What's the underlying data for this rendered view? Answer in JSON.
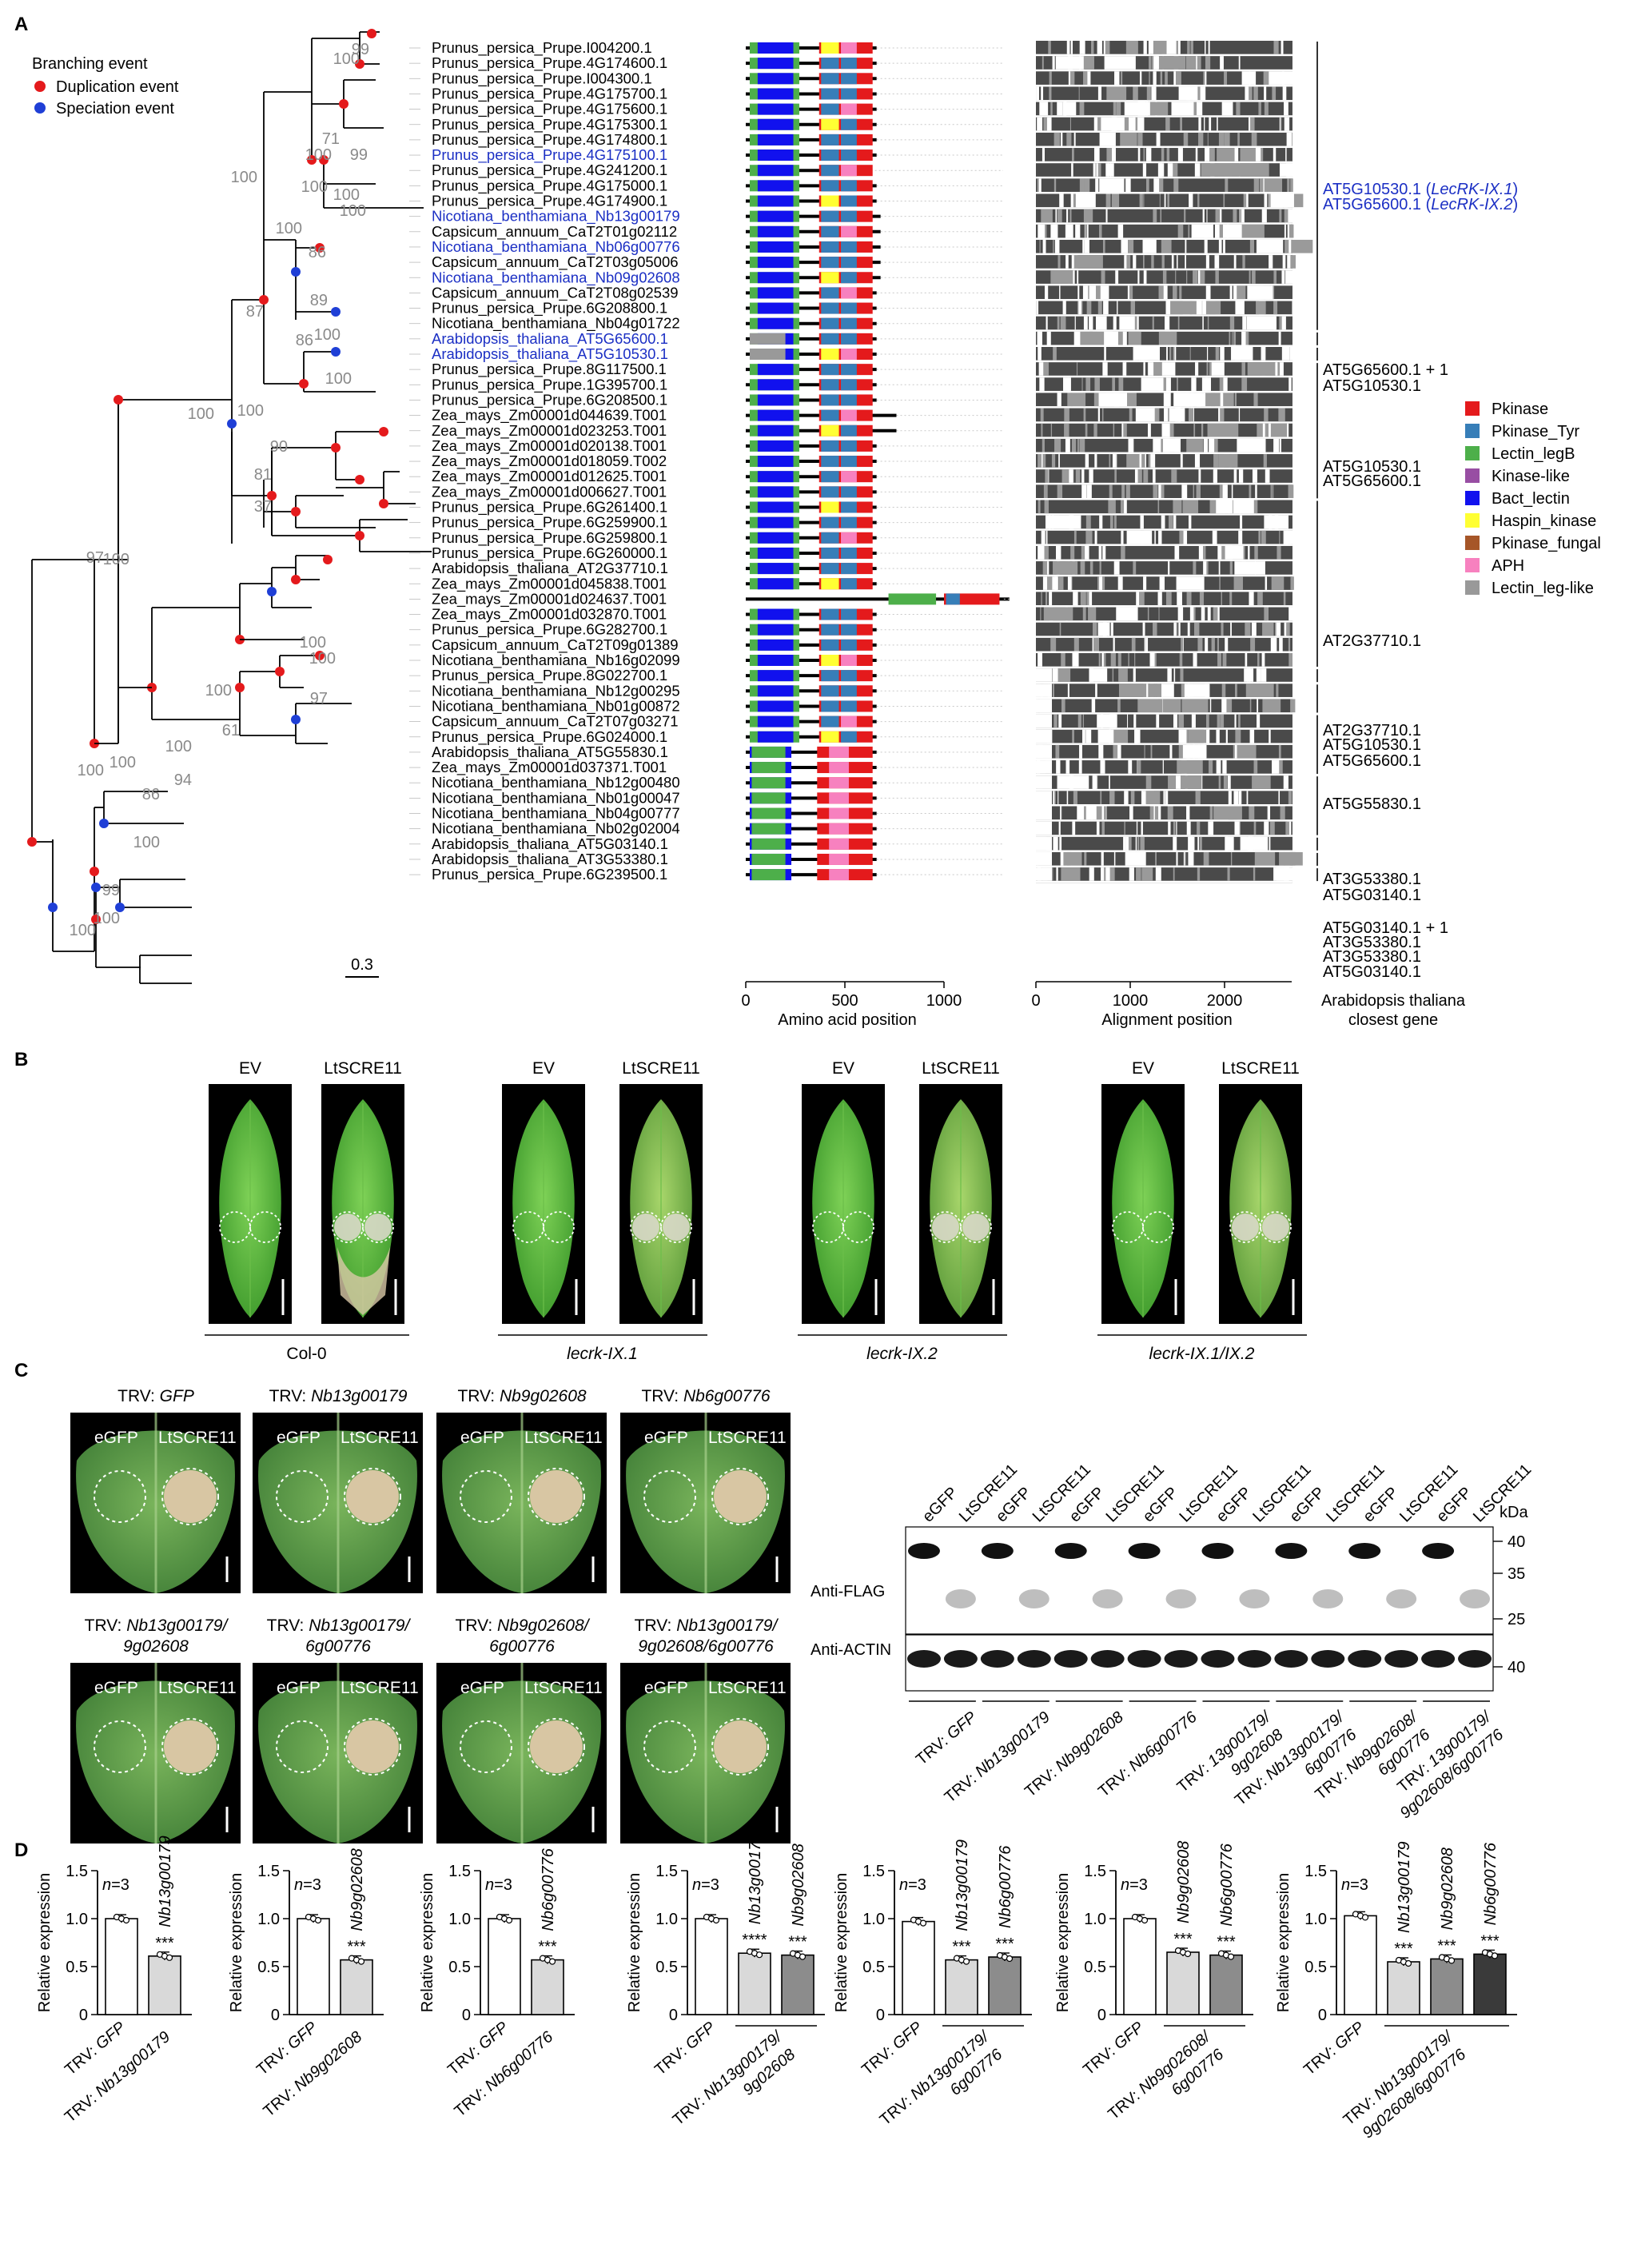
{
  "panel_labels": [
    "A",
    "B",
    "C",
    "D"
  ],
  "panelA": {
    "legend_title": "Branching event",
    "legend_items": [
      {
        "label": "Duplication event",
        "color": "#e41a1c"
      },
      {
        "label": "Speciation event",
        "color": "#1f3fd6"
      }
    ],
    "scale_label": "0.3",
    "leaves": [
      {
        "name": "Prunus_persica_Prupe.I004200.1",
        "color": "#000000"
      },
      {
        "name": "Prunus_persica_Prupe.4G174600.1",
        "color": "#000000"
      },
      {
        "name": "Prunus_persica_Prupe.I004300.1",
        "color": "#000000"
      },
      {
        "name": "Prunus_persica_Prupe.4G175700.1",
        "color": "#000000"
      },
      {
        "name": "Prunus_persica_Prupe.4G175600.1",
        "color": "#000000"
      },
      {
        "name": "Prunus_persica_Prupe.4G175300.1",
        "color": "#000000"
      },
      {
        "name": "Prunus_persica_Prupe.4G174800.1",
        "color": "#000000"
      },
      {
        "name": "Prunus_persica_Prupe.4G175100.1",
        "color": "#1b2fc4"
      },
      {
        "name": "Prunus_persica_Prupe.4G241200.1",
        "color": "#000000"
      },
      {
        "name": "Prunus_persica_Prupe.4G175000.1",
        "color": "#000000"
      },
      {
        "name": "Prunus_persica_Prupe.4G174900.1",
        "color": "#000000"
      },
      {
        "name": "Nicotiana_benthamiana_Nb13g00179",
        "color": "#1b2fc4"
      },
      {
        "name": "Capsicum_annuum_CaT2T01g02112",
        "color": "#000000"
      },
      {
        "name": "Nicotiana_benthamiana_Nb06g00776",
        "color": "#1b2fc4"
      },
      {
        "name": "Capsicum_annuum_CaT2T03g05006",
        "color": "#000000"
      },
      {
        "name": "Nicotiana_benthamiana_Nb09g02608",
        "color": "#1b2fc4"
      },
      {
        "name": "Capsicum_annuum_CaT2T08g02539",
        "color": "#000000"
      },
      {
        "name": "Prunus_persica_Prupe.6G208800.1",
        "color": "#000000"
      },
      {
        "name": "Nicotiana_benthamiana_Nb04g01722",
        "color": "#000000"
      },
      {
        "name": "Arabidopsis_thaliana_AT5G65600.1",
        "color": "#1b2fc4"
      },
      {
        "name": "Arabidopsis_thaliana_AT5G10530.1",
        "color": "#1b2fc4"
      },
      {
        "name": "Prunus_persica_Prupe.8G117500.1",
        "color": "#000000"
      },
      {
        "name": "Prunus_persica_Prupe.1G395700.1",
        "color": "#000000"
      },
      {
        "name": "Prunus_persica_Prupe.6G208500.1",
        "color": "#000000"
      },
      {
        "name": "Zea_mays_Zm00001d044639.T001",
        "color": "#000000"
      },
      {
        "name": "Zea_mays_Zm00001d023253.T001",
        "color": "#000000"
      },
      {
        "name": "Zea_mays_Zm00001d020138.T001",
        "color": "#000000"
      },
      {
        "name": "Zea_mays_Zm00001d018059.T002",
        "color": "#000000"
      },
      {
        "name": "Zea_mays_Zm00001d012625.T001",
        "color": "#000000"
      },
      {
        "name": "Zea_mays_Zm00001d006627.T001",
        "color": "#000000"
      },
      {
        "name": "Prunus_persica_Prupe.6G261400.1",
        "color": "#000000"
      },
      {
        "name": "Prunus_persica_Prupe.6G259900.1",
        "color": "#000000"
      },
      {
        "name": "Prunus_persica_Prupe.6G259800.1",
        "color": "#000000"
      },
      {
        "name": "Prunus_persica_Prupe.6G260000.1",
        "color": "#000000"
      },
      {
        "name": "Arabidopsis_thaliana_AT2G37710.1",
        "color": "#000000"
      },
      {
        "name": "Zea_mays_Zm00001d045838.T001",
        "color": "#000000"
      },
      {
        "name": "Zea_mays_Zm00001d024637.T001",
        "color": "#000000"
      },
      {
        "name": "Zea_mays_Zm00001d032870.T001",
        "color": "#000000"
      },
      {
        "name": "Prunus_persica_Prupe.6G282700.1",
        "color": "#000000"
      },
      {
        "name": "Capsicum_annuum_CaT2T09g01389",
        "color": "#000000"
      },
      {
        "name": "Nicotiana_benthamiana_Nb16g02099",
        "color": "#000000"
      },
      {
        "name": "Prunus_persica_Prupe.8G022700.1",
        "color": "#000000"
      },
      {
        "name": "Nicotiana_benthamiana_Nb12g00295",
        "color": "#000000"
      },
      {
        "name": "Nicotiana_benthamiana_Nb01g00872",
        "color": "#000000"
      },
      {
        "name": "Capsicum_annuum_CaT2T07g03271",
        "color": "#000000"
      },
      {
        "name": "Prunus_persica_Prupe.6G024000.1",
        "color": "#000000"
      },
      {
        "name": "Arabidopsis_thaliana_AT5G55830.1",
        "color": "#000000"
      },
      {
        "name": "Zea_mays_Zm00001d037371.T001",
        "color": "#000000"
      },
      {
        "name": "Nicotiana_benthamiana_Nb12g00480",
        "color": "#000000"
      },
      {
        "name": "Nicotiana_benthamiana_Nb01g00047",
        "color": "#000000"
      },
      {
        "name": "Nicotiana_benthamiana_Nb04g00777",
        "color": "#000000"
      },
      {
        "name": "Nicotiana_benthamiana_Nb02g02004",
        "color": "#000000"
      },
      {
        "name": "Arabidopsis_thaliana_AT5G03140.1",
        "color": "#000000"
      },
      {
        "name": "Arabidopsis_thaliana_AT3G53380.1",
        "color": "#000000"
      },
      {
        "name": "Prunus_persica_Prupe.6G239500.1",
        "color": "#000000"
      }
    ],
    "domain_axis_label": "Amino acid position",
    "domain_axis_ticks": [
      "0",
      "500",
      "1000"
    ],
    "alignment_axis_label": "Alignment position",
    "alignment_axis_ticks": [
      "0",
      "1000",
      "2000"
    ],
    "closest_gene_header": [
      "Arabidopsis thaliana",
      "closest gene"
    ],
    "closest_gene_labels": [
      {
        "text": "AT5G10530.1 (LecRK-IX.1)",
        "color": "#1b2fc4"
      },
      {
        "text": "AT5G65600.1 (LecRK-IX.2)",
        "color": "#1b2fc4"
      },
      {
        "text": "AT5G65600.1 + 1",
        "color": "#000000"
      },
      {
        "text": "AT5G10530.1",
        "color": "#000000"
      },
      {
        "text": "AT5G10530.1",
        "color": "#000000"
      },
      {
        "text": "AT5G65600.1",
        "color": "#000000"
      },
      {
        "text": "AT2G37710.1",
        "color": "#000000"
      },
      {
        "text": "AT2G37710.1",
        "color": "#000000"
      },
      {
        "text": "AT5G10530.1",
        "color": "#000000"
      },
      {
        "text": "AT5G65600.1",
        "color": "#000000"
      },
      {
        "text": "AT5G55830.1",
        "color": "#000000"
      },
      {
        "text": "AT3G53380.1",
        "color": "#000000"
      },
      {
        "text": "AT5G03140.1",
        "color": "#000000"
      },
      {
        "text": "AT5G03140.1 + 1",
        "color": "#000000"
      },
      {
        "text": "AT3G53380.1",
        "color": "#000000"
      },
      {
        "text": "AT3G53380.1",
        "color": "#000000"
      },
      {
        "text": "AT5G03140.1",
        "color": "#000000"
      }
    ],
    "domain_legend": [
      {
        "label": "Pkinase",
        "color": "#e41a1c"
      },
      {
        "label": "Pkinase_Tyr",
        "color": "#377eb8"
      },
      {
        "label": "Lectin_legB",
        "color": "#4daf4a"
      },
      {
        "label": "Kinase-like",
        "color": "#984ea3"
      },
      {
        "label": "Bact_lectin",
        "color": "#1111ee"
      },
      {
        "label": "Haspin_kinase",
        "color": "#ffff33"
      },
      {
        "label": "Pkinase_fungal",
        "color": "#a65628"
      },
      {
        "label": "APH",
        "color": "#f781bf"
      },
      {
        "label": "Lectin_leg-like",
        "color": "#999999"
      }
    ],
    "bootstrap_labels": [
      "99",
      "100",
      "71",
      "100",
      "99",
      "100",
      "100",
      "100",
      "86",
      "89",
      "100",
      "100",
      "87",
      "86",
      "100",
      "100",
      "100",
      "100",
      "90",
      "81",
      "37",
      "97",
      "100",
      "100",
      "100",
      "100",
      "61",
      "100",
      "100",
      "97",
      "100",
      "86",
      "94",
      "100",
      "100",
      "99",
      "100"
    ]
  },
  "panelB": {
    "column_headers": [
      "EV",
      "LtSCRE11"
    ],
    "genotypes": [
      {
        "label": "Col-0",
        "italic": false
      },
      {
        "label": "lecrk-IX.1",
        "italic": true
      },
      {
        "label": "lecrk-IX.2",
        "italic": true
      },
      {
        "label": "lecrk-IX.1/IX.2",
        "italic": true
      }
    ]
  },
  "panelC": {
    "leaf_titles": [
      [
        "TRV: ",
        "GFP"
      ],
      [
        "TRV: ",
        "Nb13g00179"
      ],
      [
        "TRV: ",
        "Nb9g02608"
      ],
      [
        "TRV: ",
        "Nb6g00776"
      ],
      [
        "TRV: ",
        "Nb13g00179/",
        "9g02608"
      ],
      [
        "TRV: ",
        "Nb13g00179/",
        "6g00776"
      ],
      [
        "TRV: ",
        "Nb9g02608/",
        "6g00776"
      ],
      [
        "TRV: ",
        "Nb13g00179/",
        "9g02608/6g00776"
      ]
    ],
    "spot_labels": [
      "eGFP",
      "LtSCRE11"
    ],
    "blot_lane_labels": [
      "eGFP",
      "LtSCRE11"
    ],
    "blot_rows": [
      "Anti-FLAG",
      "Anti-ACTIN"
    ],
    "kda_label": "kDa",
    "kda_markers": [
      "40",
      "35",
      "25",
      "40"
    ],
    "blot_groups": [
      [
        "TRV: ",
        "GFP"
      ],
      [
        "TRV: ",
        "Nb13g00179"
      ],
      [
        "TRV: ",
        "Nb9g02608"
      ],
      [
        "TRV: ",
        "Nb6g00776"
      ],
      [
        "TRV: ",
        "13g00179/",
        "9g02608"
      ],
      [
        "TRV: ",
        "Nb13g00179/",
        "6g00776"
      ],
      [
        "TRV: ",
        "Nb9g02608/",
        "6g00776"
      ],
      [
        "TRV: ",
        "13g00179/",
        "9g02608/6g00776"
      ]
    ]
  },
  "panelD": {
    "ylabel": "Relative expression",
    "n_label": "n=3",
    "y_ticks": [
      "0",
      "0.5",
      "1.0",
      "1.5"
    ],
    "chart_data": [
      {
        "type": "bar",
        "ylabel": "Relative expression",
        "ylim": [
          0,
          1.5
        ],
        "categories": [
          "TRV: GFP",
          "TRV: Nb13g00179"
        ],
        "values": [
          1.0,
          0.61
        ],
        "significance": [
          "",
          "***"
        ],
        "top_labels": [
          "",
          "Nb13g00179"
        ],
        "bottom_labels": [
          [
            "TRV: GFP"
          ],
          [
            "TRV: Nb13g00179"
          ]
        ],
        "bar_colors": [
          "#ffffff",
          "#d9d9d9"
        ]
      },
      {
        "type": "bar",
        "ylabel": "Relative expression",
        "ylim": [
          0,
          1.5
        ],
        "categories": [
          "TRV: GFP",
          "TRV: Nb9g02608"
        ],
        "values": [
          1.0,
          0.57
        ],
        "significance": [
          "",
          "***"
        ],
        "top_labels": [
          "",
          "Nb9g02608"
        ],
        "bottom_labels": [
          [
            "TRV: GFP"
          ],
          [
            "TRV: Nb9g02608"
          ]
        ],
        "bar_colors": [
          "#ffffff",
          "#d9d9d9"
        ]
      },
      {
        "type": "bar",
        "ylabel": "Relative expression",
        "ylim": [
          0,
          1.5
        ],
        "categories": [
          "TRV: GFP",
          "TRV: Nb6g00776"
        ],
        "values": [
          1.0,
          0.57
        ],
        "significance": [
          "",
          "***"
        ],
        "top_labels": [
          "",
          "Nb6g00776"
        ],
        "bottom_labels": [
          [
            "TRV: GFP"
          ],
          [
            "TRV: Nb6g00776"
          ]
        ],
        "bar_colors": [
          "#ffffff",
          "#d9d9d9"
        ]
      },
      {
        "type": "bar",
        "ylabel": "Relative expression",
        "ylim": [
          0,
          1.5
        ],
        "categories": [
          "TRV: GFP",
          "Nb13g00179",
          "Nb9g02608"
        ],
        "values": [
          1.0,
          0.64,
          0.62
        ],
        "significance": [
          "",
          "****",
          "***"
        ],
        "top_labels": [
          "",
          "Nb13g00179",
          "Nb9g02608"
        ],
        "bottom_labels": [
          [
            "TRV: GFP"
          ],
          [
            "TRV: Nb13g00179/",
            "9g02608"
          ]
        ],
        "bar_colors": [
          "#ffffff",
          "#d9d9d9",
          "#8c8c8c"
        ]
      },
      {
        "type": "bar",
        "ylabel": "Relative expression",
        "ylim": [
          0,
          1.5
        ],
        "categories": [
          "TRV: GFP",
          "Nb13g00179",
          "Nb6g00776"
        ],
        "values": [
          0.97,
          0.57,
          0.6
        ],
        "significance": [
          "",
          "***",
          "***"
        ],
        "top_labels": [
          "",
          "Nb13g00179",
          "Nb6g00776"
        ],
        "bottom_labels": [
          [
            "TRV: GFP"
          ],
          [
            "TRV: Nb13g00179/",
            "6g00776"
          ]
        ],
        "bar_colors": [
          "#ffffff",
          "#d9d9d9",
          "#8c8c8c"
        ]
      },
      {
        "type": "bar",
        "ylabel": "Relative expression",
        "ylim": [
          0,
          1.5
        ],
        "categories": [
          "TRV: GFP",
          "Nb9g02608",
          "Nb6g00776"
        ],
        "values": [
          1.0,
          0.65,
          0.62
        ],
        "significance": [
          "",
          "***",
          "***"
        ],
        "top_labels": [
          "",
          "Nb9g02608",
          "Nb6g00776"
        ],
        "bottom_labels": [
          [
            "TRV: GFP"
          ],
          [
            "TRV: Nb9g02608/",
            "6g00776"
          ]
        ],
        "bar_colors": [
          "#ffffff",
          "#d9d9d9",
          "#8c8c8c"
        ]
      },
      {
        "type": "bar",
        "ylabel": "Relative expression",
        "ylim": [
          0,
          1.5
        ],
        "categories": [
          "TRV: GFP",
          "Nb13g00179",
          "Nb9g02608",
          "Nb6g00776"
        ],
        "values": [
          1.03,
          0.55,
          0.58,
          0.63
        ],
        "significance": [
          "",
          "***",
          "***",
          "***"
        ],
        "top_labels": [
          "",
          "Nb13g00179",
          "Nb9g02608",
          "Nb6g00776"
        ],
        "bottom_labels": [
          [
            "TRV: GFP"
          ],
          [
            "TRV: Nb13g00179/",
            "9g02608/6g00776"
          ]
        ],
        "bar_colors": [
          "#ffffff",
          "#d9d9d9",
          "#8c8c8c",
          "#3a3a3a"
        ]
      }
    ]
  }
}
